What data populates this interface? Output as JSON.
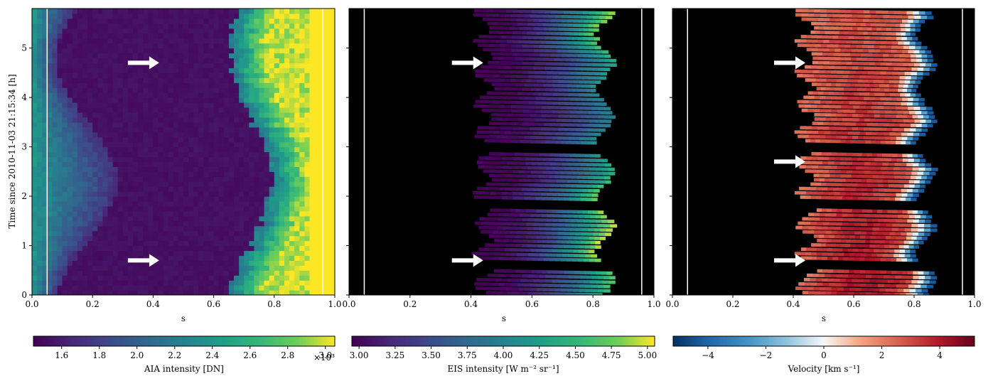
{
  "chart_data": [
    {
      "type": "heatmap",
      "panel": "AIA",
      "title": "",
      "xlabel": "s",
      "ylabel": "Time since 2010-11-03 21:15:34 [h]",
      "xlim": [
        0.0,
        1.0
      ],
      "ylim": [
        0,
        5.8
      ],
      "x_ticks": [
        "0.0",
        "0.2",
        "0.4",
        "0.6",
        "0.8",
        "1.0"
      ],
      "y_ticks": [
        "0",
        "1",
        "2",
        "3",
        "4",
        "5"
      ],
      "colormap": "viridis",
      "colorbar": {
        "label": "AIA intensity [DN]",
        "range": [
          1.45,
          3.05
        ],
        "ticks": [
          "1.6",
          "1.8",
          "2.0",
          "2.2",
          "2.4",
          "2.6",
          "2.8",
          "3.0"
        ],
        "multiplier": "×10³"
      },
      "vertical_lines_s": [
        0.05,
        0.96
      ],
      "arrows": [
        {
          "s": 0.42,
          "t": 4.7
        },
        {
          "s": 0.42,
          "t": 0.7
        }
      ]
    },
    {
      "type": "heatmap",
      "panel": "EIS intensity",
      "title": "",
      "xlabel": "s",
      "xlim": [
        0.0,
        1.0
      ],
      "ylim": [
        0,
        5.8
      ],
      "x_ticks": [
        "0.0",
        "0.2",
        "0.4",
        "0.6",
        "0.8",
        "1.0"
      ],
      "colormap": "viridis",
      "colorbar": {
        "label": "EIS intensity [W m⁻² sr⁻¹]",
        "range": [
          2.95,
          5.05
        ],
        "ticks": [
          "3.00",
          "3.25",
          "3.50",
          "3.75",
          "4.00",
          "4.25",
          "4.50",
          "4.75",
          "5.00"
        ]
      },
      "vertical_lines_s": [
        0.05,
        0.96
      ],
      "arrows": [
        {
          "s": 0.44,
          "t": 4.7
        },
        {
          "s": 0.44,
          "t": 0.7
        }
      ]
    },
    {
      "type": "heatmap",
      "panel": "EIS velocity",
      "title": "",
      "xlabel": "s",
      "xlim": [
        0.0,
        1.0
      ],
      "ylim": [
        0,
        5.8
      ],
      "x_ticks": [
        "0.0",
        "0.2",
        "0.4",
        "0.6",
        "0.8",
        "1.0"
      ],
      "colormap": "RdBu_r",
      "colorbar": {
        "label": "Velocity [km s⁻¹]",
        "range": [
          -5.2,
          5.2
        ],
        "ticks": [
          "−4",
          "−2",
          "0",
          "2",
          "4"
        ],
        "tick_values": [
          -4,
          -2,
          0,
          2,
          4
        ]
      },
      "vertical_lines_s": [
        0.05,
        0.96
      ],
      "arrows": [
        {
          "s": 0.44,
          "t": 4.7
        },
        {
          "s": 0.44,
          "t": 2.7
        },
        {
          "s": 0.44,
          "t": 0.7
        }
      ]
    }
  ]
}
